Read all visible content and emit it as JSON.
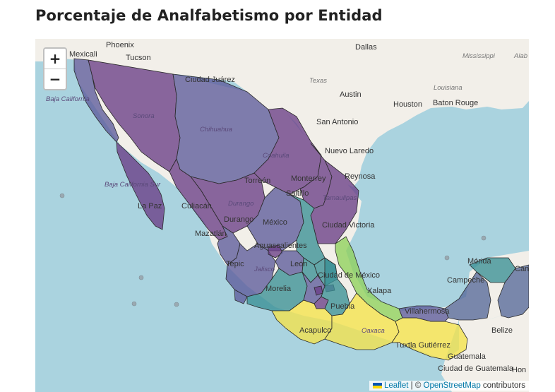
{
  "title": "Porcentaje de Analfabetismo por Entidad",
  "zoom": {
    "in_label": "+",
    "out_label": "−"
  },
  "attribution": {
    "leaflet": "Leaflet",
    "sep": " | © ",
    "osm": "OpenStreetMap",
    "suffix": " contributors"
  },
  "colors": {
    "purple": "#6a3d86",
    "purple_blue": "#5d5b9b",
    "slate": "#57699a",
    "teal": "#3a8f95",
    "green": "#8fd15b",
    "yellow": "#f5e34a",
    "land": "#f2efe9",
    "water": "#aad3df"
  },
  "labels": {
    "mexicali": "Mexicali",
    "phoenix": "Phoenix",
    "tucson": "Tucson",
    "dallas": "Dallas",
    "mississippi": "Mississippi",
    "alabama": "Alab",
    "juarez": "Ciudad Juárez",
    "texas": "Texas",
    "louisiana": "Louisiana",
    "austin": "Austin",
    "houston": "Houston",
    "baton_rouge": "Baton Rouge",
    "san_antonio": "San Antonio",
    "baja_california": "Baja California",
    "sonora": "Sonora",
    "chihuahua": "Chihuahua",
    "coahuila": "Coahuila",
    "nuevo_laredo": "Nuevo Laredo",
    "reynosa": "Reynosa",
    "monterrey": "Monterrey",
    "torreon": "Torreón",
    "saltillo": "Saltillo",
    "tamaulipas": "Tamaulipas",
    "baja_california_sur": "Baja California Sur",
    "la_paz": "La Paz",
    "culiacan": "Culiacán",
    "durango": "Durango",
    "durango_state": "Durango",
    "mazatlan": "Mazatlán",
    "mexico": "México",
    "ciudad_victoria": "Ciudad Victoria",
    "aguascalientes": "Aguascalientes",
    "tepic": "Tepic",
    "jalisco": "Jalisco",
    "leon": "León",
    "ciudad_mexico": "Ciudad de México",
    "morelia": "Morelia",
    "xalapa": "Xalapa",
    "puebla": "Puebla",
    "merida": "Mérida",
    "campeche": "Campeche",
    "cancun": "Canc",
    "villahermosa": "Villahermosa",
    "belize": "Belize",
    "acapulco": "Acapulco",
    "oaxaca": "Oaxaca",
    "tuxtla": "Tuxtla Gutiérrez",
    "guatemala_city": "Ciudad de Guatemala",
    "guatemala": "Guatemala",
    "honduras": "Hon"
  }
}
